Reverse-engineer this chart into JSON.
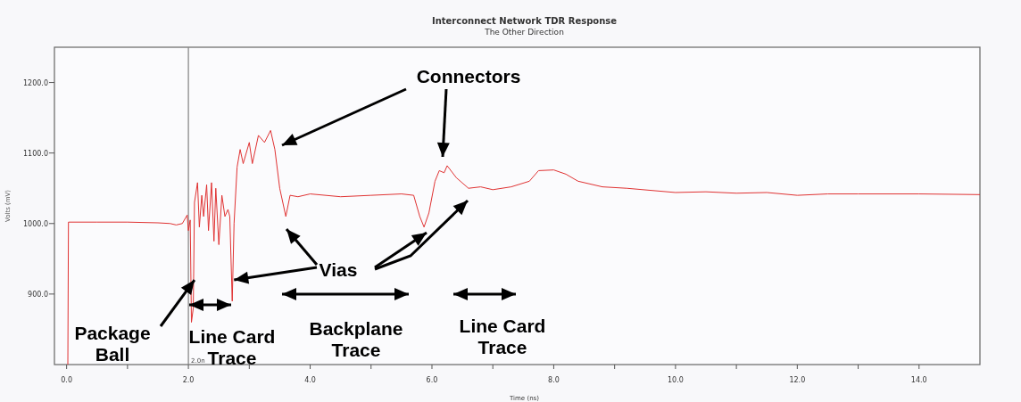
{
  "chart_data": {
    "type": "line",
    "title": "Interconnect Network TDR Response",
    "subtitle": "The Other Direction",
    "xlabel": "Time (ns)",
    "ylabel": "Volts (mV)",
    "xlim": [
      -0.2,
      15.0
    ],
    "ylim": [
      800,
      1250
    ],
    "xticks": [
      {
        "value": 0,
        "label": "0.0"
      },
      {
        "value": 1,
        "label": null
      },
      {
        "value": 2,
        "label": "2.0"
      },
      {
        "value": 3,
        "label": null
      },
      {
        "value": 4,
        "label": "4.0"
      },
      {
        "value": 5,
        "label": null
      },
      {
        "value": 6,
        "label": "6.0"
      },
      {
        "value": 7,
        "label": null
      },
      {
        "value": 8,
        "label": "8.0"
      },
      {
        "value": 9,
        "label": null
      },
      {
        "value": 10,
        "label": "10.0"
      },
      {
        "value": 11,
        "label": null
      },
      {
        "value": 12,
        "label": "12.0"
      },
      {
        "value": 13,
        "label": null
      },
      {
        "value": 14,
        "label": "14.0"
      }
    ],
    "yticks": [
      {
        "value": 900,
        "label": "900.0"
      },
      {
        "value": 1000,
        "label": "1000.0"
      },
      {
        "value": 1100,
        "label": "1100.0"
      },
      {
        "value": 1200,
        "label": "1200.0"
      }
    ],
    "grid": false,
    "marker": "none",
    "line_style": "solid",
    "ref_lines": [
      {
        "axis": "x",
        "value": 2.0,
        "label": "2.0n",
        "color": "#8a8a8a"
      }
    ],
    "series": [
      {
        "color": "#e03232",
        "x": [
          0.02,
          0.03,
          0.5,
          1.0,
          1.5,
          1.7,
          1.8,
          1.9,
          1.98,
          2.0,
          2.03,
          2.05,
          2.08,
          2.1,
          2.15,
          2.18,
          2.22,
          2.25,
          2.3,
          2.33,
          2.38,
          2.42,
          2.45,
          2.5,
          2.55,
          2.6,
          2.65,
          2.68,
          2.72,
          2.75,
          2.8,
          2.85,
          2.9,
          3.0,
          3.05,
          3.15,
          3.25,
          3.35,
          3.42,
          3.5,
          3.6,
          3.67,
          3.8,
          4.0,
          4.5,
          5.0,
          5.5,
          5.7,
          5.8,
          5.87,
          5.95,
          6.05,
          6.12,
          6.2,
          6.25,
          6.4,
          6.6,
          6.8,
          7.0,
          7.3,
          7.6,
          7.75,
          8.0,
          8.2,
          8.4,
          8.8,
          9.2,
          10.0,
          10.5,
          11.0,
          11.5,
          12.0,
          12.5,
          13.0,
          14.0,
          15.0
        ],
        "values": [
          800,
          1002,
          1002,
          1002,
          1001,
          1000,
          998,
          1000,
          1012,
          990,
          1005,
          860,
          880,
          1030,
          1058,
          995,
          1040,
          1010,
          1055,
          990,
          1058,
          975,
          1050,
          970,
          1040,
          1010,
          1020,
          1010,
          890,
          1000,
          1080,
          1105,
          1085,
          1115,
          1085,
          1125,
          1115,
          1132,
          1105,
          1050,
          1010,
          1040,
          1038,
          1042,
          1038,
          1040,
          1042,
          1040,
          1010,
          995,
          1015,
          1060,
          1075,
          1072,
          1082,
          1065,
          1050,
          1052,
          1048,
          1052,
          1060,
          1075,
          1076,
          1070,
          1060,
          1052,
          1050,
          1044,
          1045,
          1043,
          1044,
          1040,
          1042,
          1042,
          1042,
          1041
        ]
      }
    ],
    "annotations": [
      "Connectors",
      {
        "text": "Vias",
        "x": 2.75,
        "y": 920
      },
      {
        "text": "Package Ball",
        "x": 2.1,
        "y": 920
      },
      "Line Card Trace",
      "Backplane Trace",
      "Line Card Trace"
    ]
  }
}
